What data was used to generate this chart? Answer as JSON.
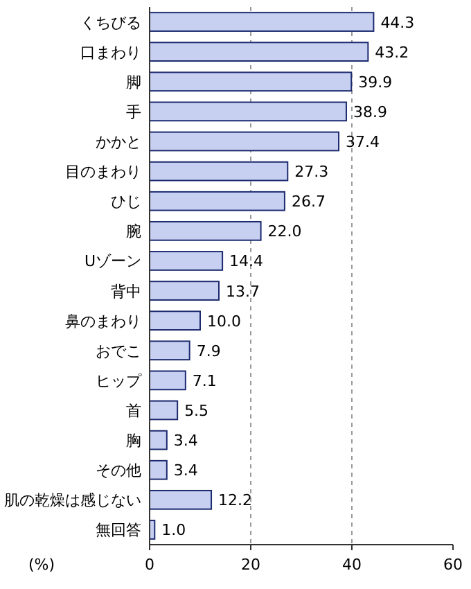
{
  "chart_data": {
    "type": "bar",
    "orientation": "horizontal",
    "xlabel": "(%)",
    "categories": [
      "くちびる",
      "口まわり",
      "脚",
      "手",
      "かかと",
      "目のまわり",
      "ひじ",
      "腕",
      "Uゾーン",
      "背中",
      "鼻のまわり",
      "おでこ",
      "ヒップ",
      "首",
      "胸",
      "その他",
      "肌の乾燥は感じない",
      "無回答"
    ],
    "values": [
      44.3,
      43.2,
      39.9,
      38.9,
      37.4,
      27.3,
      26.7,
      22.0,
      14.4,
      13.7,
      10.0,
      7.9,
      7.1,
      5.5,
      3.4,
      3.4,
      12.2,
      1.0
    ],
    "value_labels": [
      "44.3",
      "43.2",
      "39.9",
      "38.9",
      "37.4",
      "27.3",
      "26.7",
      "22.0",
      "14.4",
      "13.7",
      "10.0",
      "7.9",
      "7.1",
      "5.5",
      "3.4",
      "3.4",
      "12.2",
      "1.0"
    ],
    "color": "#c8d0f2",
    "xlim": [
      0,
      60
    ],
    "xticks": [
      0,
      20,
      40,
      60
    ],
    "grid": "x"
  }
}
